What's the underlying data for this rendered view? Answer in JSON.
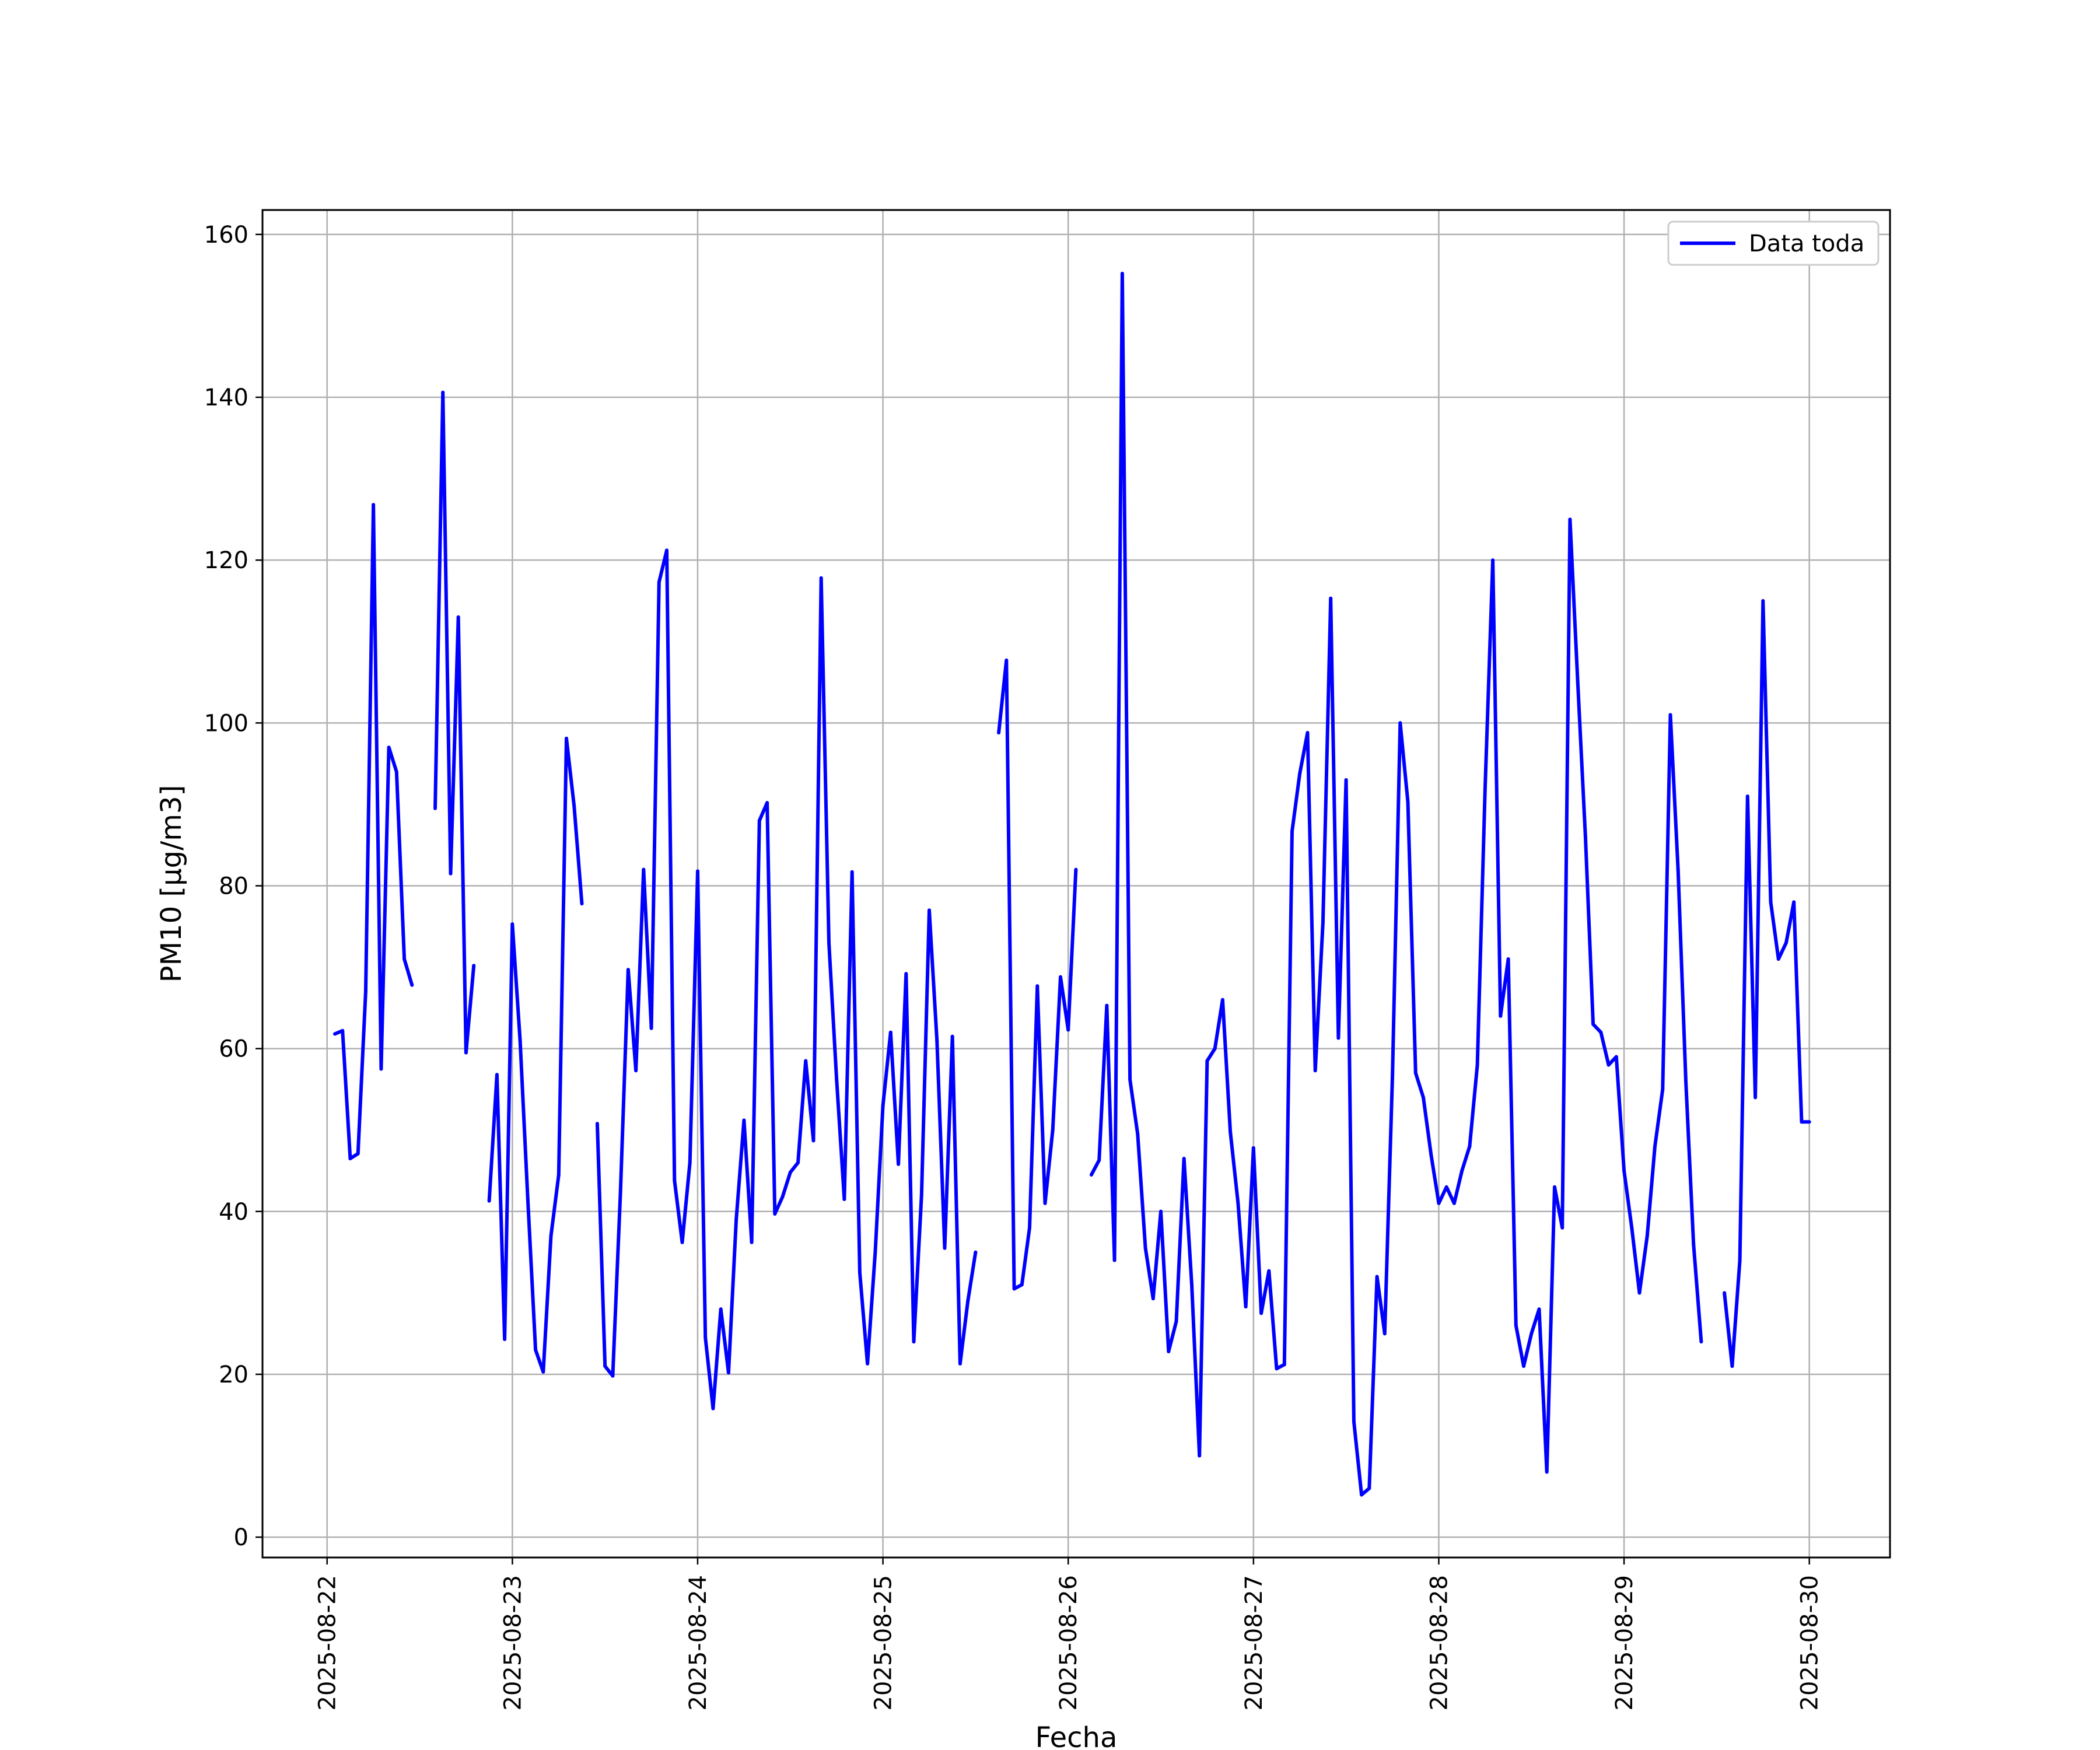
{
  "chart_data": {
    "type": "line",
    "xlabel": "Fecha",
    "ylabel": "PM10 [µg/m3]",
    "x_ticks": [
      "2025-08-22",
      "2025-08-23",
      "2025-08-24",
      "2025-08-25",
      "2025-08-26",
      "2025-08-27",
      "2025-08-28",
      "2025-08-29",
      "2025-08-30"
    ],
    "y_ticks": [
      0,
      20,
      40,
      60,
      80,
      100,
      120,
      140,
      160
    ],
    "xlim": [
      "2025-08-21T15:38",
      "2025-08-30T10:27"
    ],
    "ylim": [
      -2.5,
      163
    ],
    "grid": true,
    "legend_position": "top-right",
    "colors": {
      "line": "#0000ff",
      "grid": "#b0b0b0",
      "axes": "#000000"
    },
    "series": [
      {
        "name": "Data toda",
        "color": "#0000ff",
        "segments": [
          [
            [
              "2025-08-22T01:00",
              61.8
            ],
            [
              "2025-08-22T02:00",
              62.2
            ],
            [
              "2025-08-22T03:00",
              46.5
            ],
            [
              "2025-08-22T04:00",
              47.1
            ],
            [
              "2025-08-22T05:00",
              67.0
            ],
            [
              "2025-08-22T06:00",
              126.8
            ],
            [
              "2025-08-22T07:00",
              57.5
            ],
            [
              "2025-08-22T08:00",
              97.0
            ],
            [
              "2025-08-22T09:00",
              94.0
            ],
            [
              "2025-08-22T10:00",
              71.0
            ],
            [
              "2025-08-22T11:00",
              67.8
            ]
          ],
          [
            [
              "2025-08-22T14:00",
              89.5
            ],
            [
              "2025-08-22T15:00",
              140.6
            ],
            [
              "2025-08-22T16:00",
              81.5
            ],
            [
              "2025-08-22T17:00",
              113.0
            ],
            [
              "2025-08-22T18:00",
              59.5
            ],
            [
              "2025-08-22T19:00",
              70.2
            ]
          ],
          [
            [
              "2025-08-22T21:00",
              41.3
            ],
            [
              "2025-08-22T22:00",
              56.8
            ],
            [
              "2025-08-22T23:00",
              24.3
            ],
            [
              "2025-08-23T00:00",
              75.3
            ],
            [
              "2025-08-23T01:00",
              61.0
            ],
            [
              "2025-08-23T02:00",
              41.5
            ],
            [
              "2025-08-23T03:00",
              23.0
            ],
            [
              "2025-08-23T04:00",
              20.3
            ],
            [
              "2025-08-23T05:00",
              37.0
            ],
            [
              "2025-08-23T06:00",
              44.5
            ],
            [
              "2025-08-23T07:00",
              98.1
            ],
            [
              "2025-08-23T08:00",
              89.8
            ],
            [
              "2025-08-23T09:00",
              77.8
            ]
          ],
          [
            [
              "2025-08-23T11:00",
              50.8
            ],
            [
              "2025-08-23T12:00",
              21.0
            ],
            [
              "2025-08-23T13:00",
              19.8
            ],
            [
              "2025-08-23T14:00",
              42.3
            ],
            [
              "2025-08-23T15:00",
              69.7
            ],
            [
              "2025-08-23T16:00",
              57.3
            ],
            [
              "2025-08-23T17:00",
              82.0
            ],
            [
              "2025-08-23T18:00",
              62.5
            ],
            [
              "2025-08-23T19:00",
              117.3
            ],
            [
              "2025-08-23T20:00",
              121.2
            ],
            [
              "2025-08-23T21:00",
              43.8
            ],
            [
              "2025-08-23T22:00",
              36.2
            ],
            [
              "2025-08-23T23:00",
              46.0
            ],
            [
              "2025-08-24T00:00",
              81.8
            ],
            [
              "2025-08-24T01:00",
              24.5
            ],
            [
              "2025-08-24T02:00",
              15.8
            ],
            [
              "2025-08-24T03:00",
              28.0
            ],
            [
              "2025-08-24T04:00",
              20.2
            ],
            [
              "2025-08-24T05:00",
              39.0
            ],
            [
              "2025-08-24T06:00",
              51.2
            ],
            [
              "2025-08-24T07:00",
              36.2
            ],
            [
              "2025-08-24T08:00",
              88.0
            ],
            [
              "2025-08-24T09:00",
              90.2
            ],
            [
              "2025-08-24T10:00",
              39.7
            ],
            [
              "2025-08-24T11:00",
              41.8
            ],
            [
              "2025-08-24T12:00",
              44.8
            ],
            [
              "2025-08-24T13:00",
              46.0
            ],
            [
              "2025-08-24T14:00",
              58.5
            ],
            [
              "2025-08-24T15:00",
              48.7
            ],
            [
              "2025-08-24T16:00",
              117.8
            ],
            [
              "2025-08-24T17:00",
              73.0
            ],
            [
              "2025-08-24T18:00",
              56.2
            ],
            [
              "2025-08-24T19:00",
              41.5
            ],
            [
              "2025-08-24T20:00",
              81.7
            ],
            [
              "2025-08-24T21:00",
              32.5
            ],
            [
              "2025-08-24T22:00",
              21.3
            ],
            [
              "2025-08-24T23:00",
              35.0
            ],
            [
              "2025-08-25T00:00",
              53.0
            ],
            [
              "2025-08-25T01:00",
              62.0
            ],
            [
              "2025-08-25T02:00",
              45.8
            ],
            [
              "2025-08-25T03:00",
              69.2
            ],
            [
              "2025-08-25T04:00",
              24.0
            ],
            [
              "2025-08-25T05:00",
              42.0
            ],
            [
              "2025-08-25T06:00",
              77.0
            ],
            [
              "2025-08-25T07:00",
              61.0
            ],
            [
              "2025-08-25T08:00",
              35.5
            ],
            [
              "2025-08-25T09:00",
              61.5
            ],
            [
              "2025-08-25T10:00",
              21.3
            ],
            [
              "2025-08-25T11:00",
              29.0
            ],
            [
              "2025-08-25T12:00",
              35.0
            ]
          ],
          [
            [
              "2025-08-25T15:00",
              98.8
            ],
            [
              "2025-08-25T16:00",
              107.7
            ],
            [
              "2025-08-25T17:00",
              30.5
            ],
            [
              "2025-08-25T18:00",
              31.0
            ],
            [
              "2025-08-25T19:00",
              38.0
            ],
            [
              "2025-08-25T20:00",
              67.7
            ],
            [
              "2025-08-25T21:00",
              41.0
            ],
            [
              "2025-08-25T22:00",
              50.0
            ],
            [
              "2025-08-25T23:00",
              68.8
            ],
            [
              "2025-08-26T00:00",
              62.3
            ],
            [
              "2025-08-26T01:00",
              82.0
            ]
          ],
          [
            [
              "2025-08-26T03:00",
              44.5
            ],
            [
              "2025-08-26T04:00",
              46.3
            ],
            [
              "2025-08-26T05:00",
              65.3
            ],
            [
              "2025-08-26T06:00",
              34.0
            ],
            [
              "2025-08-26T07:00",
              155.2
            ],
            [
              "2025-08-26T08:00",
              56.2
            ],
            [
              "2025-08-26T09:00",
              49.5
            ],
            [
              "2025-08-26T10:00",
              35.5
            ],
            [
              "2025-08-26T11:00",
              29.3
            ],
            [
              "2025-08-26T12:00",
              40.0
            ],
            [
              "2025-08-26T13:00",
              22.8
            ],
            [
              "2025-08-26T14:00",
              26.5
            ],
            [
              "2025-08-26T15:00",
              46.5
            ],
            [
              "2025-08-26T16:00",
              31.0
            ],
            [
              "2025-08-26T17:00",
              10.0
            ],
            [
              "2025-08-26T18:00",
              58.5
            ],
            [
              "2025-08-26T19:00",
              60.0
            ],
            [
              "2025-08-26T20:00",
              66.0
            ],
            [
              "2025-08-26T21:00",
              49.8
            ],
            [
              "2025-08-26T22:00",
              41.0
            ],
            [
              "2025-08-26T23:00",
              28.3
            ],
            [
              "2025-08-27T00:00",
              47.8
            ],
            [
              "2025-08-27T01:00",
              27.5
            ],
            [
              "2025-08-27T02:00",
              32.7
            ],
            [
              "2025-08-27T03:00",
              20.7
            ],
            [
              "2025-08-27T04:00",
              21.2
            ],
            [
              "2025-08-27T05:00",
              86.7
            ],
            [
              "2025-08-27T06:00",
              93.8
            ],
            [
              "2025-08-27T07:00",
              98.8
            ],
            [
              "2025-08-27T08:00",
              57.3
            ],
            [
              "2025-08-27T09:00",
              75.5
            ],
            [
              "2025-08-27T10:00",
              115.3
            ],
            [
              "2025-08-27T11:00",
              61.3
            ],
            [
              "2025-08-27T12:00",
              93.0
            ],
            [
              "2025-08-27T13:00",
              14.2
            ],
            [
              "2025-08-27T14:00",
              5.2
            ],
            [
              "2025-08-27T15:00",
              6.0
            ],
            [
              "2025-08-27T16:00",
              32.0
            ],
            [
              "2025-08-27T17:00",
              25.0
            ],
            [
              "2025-08-27T18:00",
              56.7
            ],
            [
              "2025-08-27T19:00",
              100.0
            ],
            [
              "2025-08-27T20:00",
              90.3
            ],
            [
              "2025-08-27T21:00",
              57.0
            ],
            [
              "2025-08-27T22:00",
              54.0
            ],
            [
              "2025-08-27T23:00",
              47.0
            ],
            [
              "2025-08-28T00:00",
              41.0
            ],
            [
              "2025-08-28T01:00",
              43.0
            ],
            [
              "2025-08-28T02:00",
              41.0
            ],
            [
              "2025-08-28T03:00",
              45.0
            ],
            [
              "2025-08-28T04:00",
              48.0
            ],
            [
              "2025-08-28T05:00",
              58.0
            ],
            [
              "2025-08-28T06:00",
              92.0
            ],
            [
              "2025-08-28T07:00",
              120.0
            ],
            [
              "2025-08-28T08:00",
              64.0
            ],
            [
              "2025-08-28T09:00",
              71.0
            ],
            [
              "2025-08-28T10:00",
              26.0
            ],
            [
              "2025-08-28T11:00",
              21.0
            ],
            [
              "2025-08-28T12:00",
              25.0
            ],
            [
              "2025-08-28T13:00",
              28.0
            ],
            [
              "2025-08-28T14:00",
              8.0
            ],
            [
              "2025-08-28T15:00",
              43.0
            ],
            [
              "2025-08-28T16:00",
              38.0
            ],
            [
              "2025-08-28T17:00",
              125.0
            ],
            [
              "2025-08-28T18:00",
              105.0
            ],
            [
              "2025-08-28T19:00",
              86.0
            ],
            [
              "2025-08-28T20:00",
              63.0
            ],
            [
              "2025-08-28T21:00",
              62.0
            ],
            [
              "2025-08-28T22:00",
              58.0
            ],
            [
              "2025-08-28T23:00",
              59.0
            ],
            [
              "2025-08-29T00:00",
              45.0
            ],
            [
              "2025-08-29T01:00",
              38.0
            ],
            [
              "2025-08-29T02:00",
              30.0
            ],
            [
              "2025-08-29T03:00",
              37.0
            ],
            [
              "2025-08-29T04:00",
              48.0
            ],
            [
              "2025-08-29T05:00",
              55.0
            ],
            [
              "2025-08-29T06:00",
              101.0
            ],
            [
              "2025-08-29T07:00",
              82.0
            ],
            [
              "2025-08-29T08:00",
              56.0
            ],
            [
              "2025-08-29T09:00",
              36.0
            ],
            [
              "2025-08-29T10:00",
              24.0
            ]
          ],
          [
            [
              "2025-08-29T13:00",
              30.0
            ],
            [
              "2025-08-29T14:00",
              21.0
            ],
            [
              "2025-08-29T15:00",
              34.0
            ],
            [
              "2025-08-29T16:00",
              91.0
            ],
            [
              "2025-08-29T17:00",
              54.0
            ],
            [
              "2025-08-29T18:00",
              115.0
            ],
            [
              "2025-08-29T19:00",
              78.0
            ],
            [
              "2025-08-29T20:00",
              71.0
            ],
            [
              "2025-08-29T21:00",
              73.0
            ],
            [
              "2025-08-29T22:00",
              78.0
            ],
            [
              "2025-08-29T23:00",
              51.0
            ],
            [
              "2025-08-30T00:00",
              51.0
            ]
          ]
        ]
      }
    ]
  }
}
